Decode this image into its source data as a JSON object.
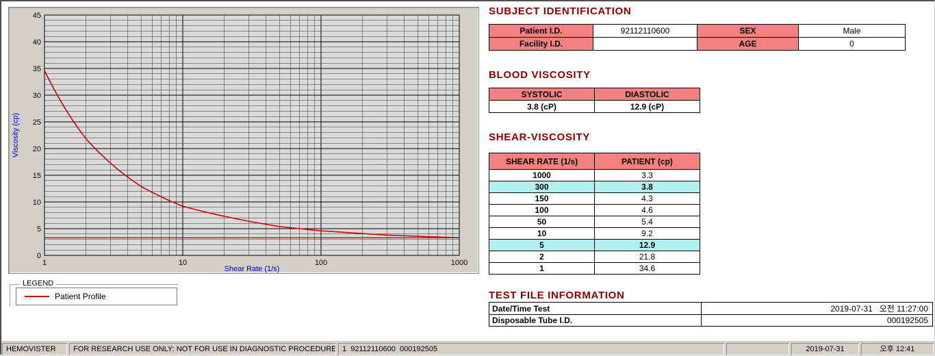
{
  "colors": {
    "section_title": "#8b0000",
    "table_header_bg": "#f48080",
    "highlight_row_bg": "#b2f0f0",
    "curve_red": "#cc0000",
    "axis_label_blue": "#0000cd",
    "chart_panel_bg": "#d4d0c8",
    "plot_bg": "#dadada",
    "status_bar_bg": "#d4d0c8"
  },
  "chart_data": {
    "type": "line",
    "title": "",
    "xlabel": "Shear Rate (1/s)",
    "ylabel": "Viscosity (cp)",
    "x_scale": "log",
    "xlim": [
      1,
      1000
    ],
    "ylim": [
      0,
      45
    ],
    "x_ticks": [
      1,
      10,
      100,
      1000
    ],
    "y_ticks": [
      0,
      5,
      10,
      15,
      20,
      25,
      30,
      35,
      40,
      45
    ],
    "grid": "on",
    "plot_bg": "#dadada",
    "legend_position": "below-left",
    "series": [
      {
        "name": "Patient Profile",
        "color": "#cc0000",
        "x": [
          1,
          2,
          5,
          10,
          50,
          100,
          150,
          300,
          1000
        ],
        "y": [
          34.6,
          21.8,
          12.9,
          9.2,
          5.4,
          4.6,
          4.3,
          3.8,
          3.3
        ]
      }
    ],
    "reference_line": {
      "value": 3.3,
      "color": "#cc0000"
    }
  },
  "legend": {
    "title": "LEGEND",
    "items": [
      {
        "label": "Patient Profile",
        "color": "#cc0000"
      }
    ]
  },
  "subject": {
    "title": "SUBJECT IDENTIFICATION",
    "rows": [
      {
        "label1": "Patient I.D.",
        "value1": "92112110600",
        "label2": "SEX",
        "value2": "Male"
      },
      {
        "label1": "Facility I.D.",
        "value1": "",
        "label2": "AGE",
        "value2": "0"
      }
    ]
  },
  "blood_viscosity": {
    "title": "BLOOD VISCOSITY",
    "headers": [
      "SYSTOLIC",
      "DIASTOLIC"
    ],
    "values": [
      "3.8 (cP)",
      "12.9 (cP)"
    ]
  },
  "shear_viscosity": {
    "title": "SHEAR-VISCOSITY",
    "headers": [
      "SHEAR RATE (1/s)",
      "PATIENT (cp)"
    ],
    "rows": [
      {
        "shear_rate": "1000",
        "patient": "3.3",
        "highlight": false
      },
      {
        "shear_rate": "300",
        "patient": "3.8",
        "highlight": true
      },
      {
        "shear_rate": "150",
        "patient": "4.3",
        "highlight": false
      },
      {
        "shear_rate": "100",
        "patient": "4.6",
        "highlight": false
      },
      {
        "shear_rate": "50",
        "patient": "5.4",
        "highlight": false
      },
      {
        "shear_rate": "10",
        "patient": "9.2",
        "highlight": false
      },
      {
        "shear_rate": "5",
        "patient": "12.9",
        "highlight": true
      },
      {
        "shear_rate": "2",
        "patient": "21.8",
        "highlight": false
      },
      {
        "shear_rate": "1",
        "patient": "34.6",
        "highlight": false
      }
    ]
  },
  "test_file": {
    "title": "TEST FILE INFORMATION",
    "rows": [
      {
        "label": "Date/Time Test",
        "value": "2019-07-31   오전 11:27:00"
      },
      {
        "label": "Disposable Tube I.D.",
        "value": "000192505"
      }
    ]
  },
  "status_bar": {
    "app_name": "HEMOVISTER",
    "notice": "FOR RESEARCH USE ONLY: NOT FOR USE IN DIAGNOSTIC PROCEDURES",
    "file_info": "1  92112110600  000192505",
    "empty": "",
    "date": "2019-07-31",
    "time": "오후 12:41"
  }
}
